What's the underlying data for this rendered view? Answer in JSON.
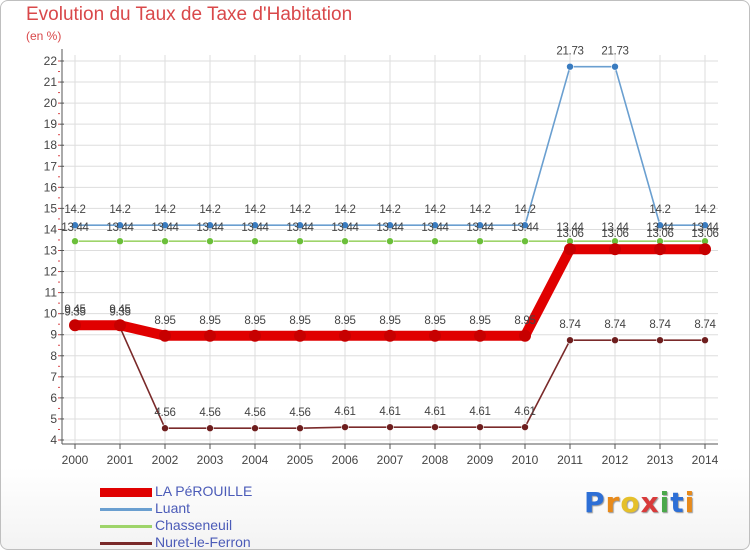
{
  "colors": {
    "title": "#d9484a",
    "axis": "#555555",
    "grid": "#dddddd",
    "labels": "#444444",
    "legend_text": "#4b5bb8"
  },
  "logo": {
    "text": "Proxiti",
    "letters": [
      "P",
      "r",
      "o",
      "x",
      "i",
      "t",
      "i"
    ],
    "colors": [
      "#2d6fd6",
      "#e88a1a",
      "#e5c02a",
      "#d83a3a",
      "#4aa84a",
      "#2d6fd6",
      "#e88a1a"
    ]
  },
  "chart_data": {
    "type": "line",
    "title": "Evolution du Taux de Taxe d'Habitation",
    "subtitle": "(en %)",
    "xlabel": "",
    "ylabel": "(en %)",
    "x": [
      "2000",
      "2001",
      "2002",
      "2003",
      "2004",
      "2005",
      "2006",
      "2007",
      "2008",
      "2009",
      "2010",
      "2011",
      "2012",
      "2013",
      "2014"
    ],
    "ylim": [
      4,
      22
    ],
    "yticks": [
      4,
      5,
      6,
      7,
      8,
      9,
      10,
      11,
      12,
      13,
      14,
      15,
      16,
      17,
      18,
      19,
      20,
      21,
      22
    ],
    "grid": true,
    "legend_position": "bottom-left",
    "series": [
      {
        "name": "LA PéROUILLE",
        "color": "#e00000",
        "dot": "#c70000",
        "thick": true,
        "values": [
          9.45,
          9.45,
          8.95,
          8.95,
          8.95,
          8.95,
          8.95,
          8.95,
          8.95,
          8.95,
          8.95,
          13.06,
          13.06,
          13.06,
          13.06
        ],
        "labels": [
          "9.45",
          "9.45",
          "8.95",
          "8.95",
          "8.95",
          "8.95",
          "8.95",
          "8.95",
          "8.95",
          "8.95",
          "8.95",
          "13.06",
          "13.06",
          "13.06",
          "13.06"
        ]
      },
      {
        "name": "Luant",
        "color": "#6a9fd0",
        "dot": "#3a7cc0",
        "thick": false,
        "values": [
          14.2,
          14.2,
          14.2,
          14.2,
          14.2,
          14.2,
          14.2,
          14.2,
          14.2,
          14.2,
          14.2,
          21.73,
          21.73,
          14.2,
          14.2
        ],
        "labels": [
          "14.2",
          "14.2",
          "14.2",
          "14.2",
          "14.2",
          "14.2",
          "14.2",
          "14.2",
          "14.2",
          "14.2",
          "14.2",
          "21.73",
          "21.73",
          "14.2",
          "14.2"
        ]
      },
      {
        "name": "Chasseneuil",
        "color": "#9ed46a",
        "dot": "#6bbf3a",
        "thick": false,
        "values": [
          13.44,
          13.44,
          13.44,
          13.44,
          13.44,
          13.44,
          13.44,
          13.44,
          13.44,
          13.44,
          13.44,
          13.44,
          13.44,
          13.44,
          13.44
        ],
        "labels": [
          "13.44",
          "13.44",
          "13.44",
          "13.44",
          "13.44",
          "13.44",
          "13.44",
          "13.44",
          "13.44",
          "13.44",
          "13.44",
          "13.44",
          "13.44",
          "13.44",
          "13.44"
        ]
      },
      {
        "name": "Nuret-le-Ferron",
        "color": "#7a2a2a",
        "dot": "#6e1e1e",
        "thick": false,
        "values": [
          9.35,
          9.35,
          4.56,
          4.56,
          4.56,
          4.56,
          4.61,
          4.61,
          4.61,
          4.61,
          4.61,
          8.74,
          8.74,
          8.74,
          8.74
        ],
        "labels": [
          "9.35",
          "9.35",
          "4.56",
          "4.56",
          "4.56",
          "4.56",
          "4.61",
          "4.61",
          "4.61",
          "4.61",
          "4.61",
          "8.74",
          "8.74",
          "8.74",
          "8.74"
        ]
      }
    ]
  }
}
